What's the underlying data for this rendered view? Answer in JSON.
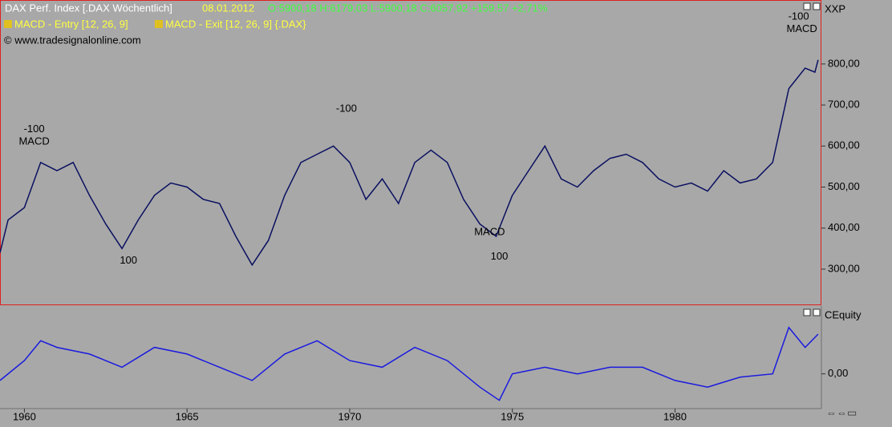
{
  "header": {
    "title": "DAX Perf. Index [.DAX  Wöchentlich]",
    "date": "08.01.2012",
    "ohlc": "O:5900,18 H:6179,03 L:5900,18 C:6057,92 +159,57 +2,71%",
    "indicators": [
      "MACD - Entry [12, 26, 9]",
      "MACD - Exit [12, 26, 9] {.DAX}"
    ],
    "copyright": "© www.tradesignalonline.com"
  },
  "chart_data": [
    {
      "type": "line",
      "axis_label": "XXP",
      "color": "#0a1060",
      "x": [
        1959.25,
        1959.5,
        1960,
        1960.5,
        1961,
        1961.5,
        1962,
        1962.5,
        1963,
        1963.5,
        1964,
        1964.5,
        1965,
        1965.5,
        1966,
        1966.5,
        1967,
        1967.5,
        1968,
        1968.5,
        1969,
        1969.5,
        1970,
        1970.5,
        1971,
        1971.5,
        1972,
        1972.5,
        1973,
        1973.5,
        1974,
        1974.5,
        1975,
        1975.5,
        1976,
        1976.5,
        1977,
        1977.5,
        1978,
        1978.5,
        1979,
        1979.5,
        1980,
        1980.5,
        1981,
        1981.5,
        1982,
        1982.5,
        1983,
        1983.5,
        1984,
        1984.3,
        1984.4
      ],
      "values": [
        340,
        420,
        450,
        560,
        540,
        560,
        480,
        410,
        350,
        420,
        480,
        510,
        500,
        470,
        460,
        380,
        310,
        370,
        480,
        560,
        580,
        600,
        560,
        470,
        520,
        460,
        560,
        590,
        560,
        470,
        410,
        380,
        480,
        540,
        600,
        520,
        500,
        540,
        570,
        580,
        560,
        520,
        500,
        510,
        490,
        540,
        510,
        520,
        560,
        740,
        790,
        780,
        810
      ],
      "xlim": [
        1959.25,
        1984.5
      ],
      "ylim": [
        214,
        952
      ],
      "yticks": [
        {
          "value": 300,
          "label": "300,00"
        },
        {
          "value": 400,
          "label": "400,00"
        },
        {
          "value": 500,
          "label": "500,00"
        },
        {
          "value": 600,
          "label": "600,00"
        },
        {
          "value": 700,
          "label": "700,00"
        },
        {
          "value": 800,
          "label": "800,00"
        }
      ],
      "annotations": [
        {
          "text": "-100",
          "x": 1960.3,
          "y": 640
        },
        {
          "text": "MACD",
          "x": 1960.3,
          "y": 610
        },
        {
          "text": "100",
          "x": 1963.2,
          "y": 320
        },
        {
          "text": "-100",
          "x": 1969.9,
          "y": 690
        },
        {
          "text": "MACD",
          "x": 1974.3,
          "y": 390
        },
        {
          "text": "100",
          "x": 1974.6,
          "y": 330
        },
        {
          "text": "-100",
          "x": 1983.8,
          "y": 915
        },
        {
          "text": "MACD",
          "x": 1983.9,
          "y": 885
        }
      ]
    },
    {
      "type": "line",
      "axis_label": "CEquity",
      "color": "#1a1ae0",
      "x": [
        1959.25,
        1960,
        1960.5,
        1961,
        1962,
        1963,
        1964,
        1965,
        1966,
        1967,
        1968,
        1969,
        1970,
        1971,
        1972,
        1973,
        1974,
        1974.6,
        1975,
        1976,
        1977,
        1978,
        1979,
        1980,
        1981,
        1982,
        1983,
        1983.5,
        1984,
        1984.4
      ],
      "values": [
        -10,
        20,
        50,
        40,
        30,
        10,
        40,
        30,
        10,
        -10,
        30,
        50,
        20,
        10,
        40,
        20,
        -20,
        -40,
        0,
        10,
        0,
        10,
        10,
        -10,
        -20,
        -5,
        0,
        70,
        40,
        60
      ],
      "xlim": [
        1959.25,
        1984.5
      ],
      "ylim": [
        -50,
        100
      ],
      "xticks": [
        1960,
        1965,
        1970,
        1975,
        1980
      ],
      "yticks": [
        {
          "value": 0,
          "label": "0,00"
        }
      ]
    }
  ]
}
